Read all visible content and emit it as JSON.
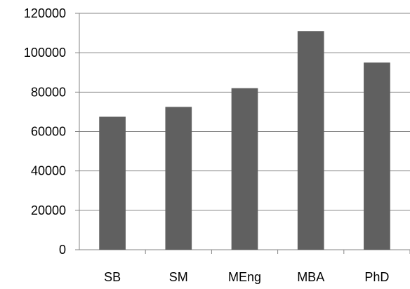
{
  "chart_data": {
    "type": "bar",
    "title": "",
    "xlabel": "",
    "ylabel": "",
    "categories": [
      "SB",
      "SM",
      "MEng",
      "MBA",
      "PhD"
    ],
    "values": [
      67500,
      72500,
      82000,
      111000,
      95000
    ],
    "ylim": [
      0,
      120000
    ],
    "y_ticks": [
      "0",
      "20000",
      "40000",
      "60000",
      "80000",
      "100000",
      "120000"
    ],
    "grid": true,
    "legend": "none",
    "bar_color": "#606060",
    "axis_color": "#868686"
  }
}
